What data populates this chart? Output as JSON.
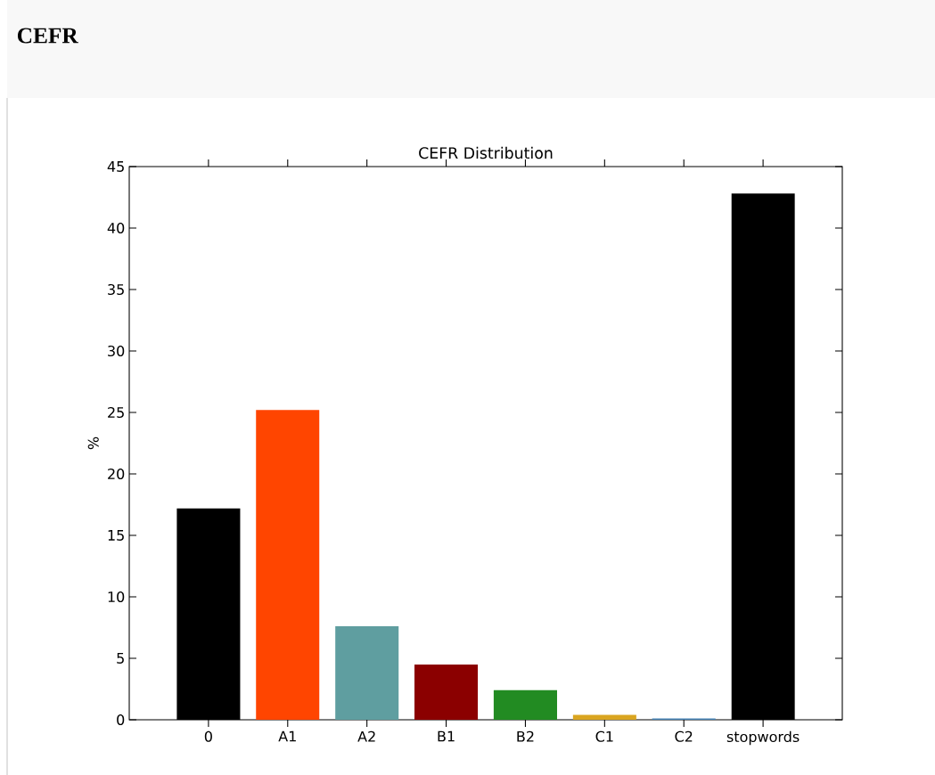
{
  "chart_data": {
    "type": "bar",
    "title": "CEFR Distribution",
    "annotations": [
      "CEFR"
    ],
    "ylabel": "%",
    "categories": [
      "0",
      "A1",
      "A2",
      "B1",
      "B2",
      "C1",
      "C2",
      "stopwords"
    ],
    "values": [
      17.2,
      25.2,
      7.6,
      4.5,
      2.4,
      0.4,
      0.1,
      42.8
    ],
    "colors": [
      "#000000",
      "#ff4500",
      "#5f9ea0",
      "#8b0000",
      "#228b22",
      "#daa520",
      "#4682b4",
      "#000000"
    ],
    "ylim": [
      0,
      45
    ],
    "yticks": [
      0,
      5,
      10,
      15,
      20,
      25,
      30,
      35,
      40,
      45
    ]
  }
}
